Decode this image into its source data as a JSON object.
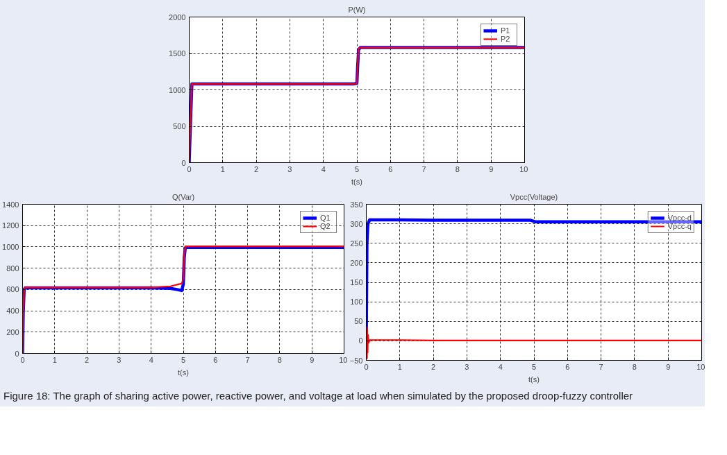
{
  "chart_data": [
    {
      "type": "line",
      "title": "P(W)",
      "xlabel": "t(s)",
      "xlim": [
        0,
        10
      ],
      "xticks": [
        0,
        1,
        2,
        3,
        4,
        5,
        6,
        7,
        8,
        9,
        10
      ],
      "ylim": [
        0,
        2000
      ],
      "yticks": [
        0,
        500,
        1000,
        1500,
        2000
      ],
      "grid": true,
      "legend": "top right",
      "series": [
        {
          "name": "P1",
          "color": "#0000ff",
          "x": [
            0,
            0.02,
            0.05,
            0.08,
            1,
            2,
            3,
            4,
            4.9,
            5.0,
            5.02,
            5.05,
            5.1,
            6,
            7,
            8,
            9,
            10
          ],
          "values": [
            0,
            300,
            700,
            1080,
            1080,
            1080,
            1080,
            1080,
            1080,
            1090,
            1300,
            1550,
            1580,
            1580,
            1580,
            1580,
            1580,
            1580
          ]
        },
        {
          "name": "P2",
          "color": "#ff0000",
          "x": [
            0,
            0.02,
            0.05,
            0.08,
            1,
            2,
            3,
            4,
            4.9,
            5.0,
            5.02,
            5.05,
            5.1,
            6,
            7,
            8,
            9,
            10
          ],
          "values": [
            0,
            320,
            700,
            1080,
            1080,
            1080,
            1080,
            1080,
            1080,
            1090,
            1320,
            1560,
            1580,
            1580,
            1580,
            1580,
            1580,
            1580
          ]
        }
      ]
    },
    {
      "type": "line",
      "title": "Q(Var)",
      "xlabel": "t(s)",
      "xlim": [
        0,
        10
      ],
      "xticks": [
        0,
        1,
        2,
        3,
        4,
        5,
        6,
        7,
        8,
        9,
        10
      ],
      "ylim": [
        0,
        1400
      ],
      "yticks": [
        0,
        200,
        400,
        600,
        800,
        1000,
        1200,
        1400
      ],
      "grid": true,
      "legend": "top right",
      "series": [
        {
          "name": "Q1",
          "color": "#0000ff",
          "x": [
            0,
            0.02,
            0.05,
            0.08,
            1,
            2,
            3,
            4,
            4.6,
            4.8,
            4.95,
            5.0,
            5.03,
            5.06,
            5.1,
            6,
            7,
            8,
            9,
            10
          ],
          "values": [
            0,
            380,
            600,
            615,
            615,
            615,
            615,
            615,
            610,
            600,
            590,
            650,
            900,
            990,
            995,
            995,
            995,
            995,
            995,
            995
          ]
        },
        {
          "name": "Q2",
          "color": "#ff0000",
          "x": [
            0,
            0.02,
            0.05,
            0.08,
            1,
            2,
            3,
            4,
            4.6,
            4.8,
            4.95,
            5.0,
            5.03,
            5.06,
            5.1,
            6,
            7,
            8,
            9,
            10
          ],
          "values": [
            0,
            380,
            600,
            620,
            620,
            620,
            620,
            620,
            630,
            645,
            655,
            700,
            920,
            1005,
            1005,
            1005,
            1005,
            1005,
            1005,
            1005
          ]
        }
      ]
    },
    {
      "type": "line",
      "title": "Vpcc(Voltage)",
      "xlabel": "t(s)",
      "xlim": [
        0,
        10
      ],
      "xticks": [
        0,
        1,
        2,
        3,
        4,
        5,
        6,
        7,
        8,
        9,
        10
      ],
      "ylim": [
        -50,
        350
      ],
      "yticks": [
        -50,
        0,
        50,
        100,
        150,
        200,
        250,
        300,
        350
      ],
      "grid": true,
      "legend": "top right",
      "annotations": [
        "Figure 18: The graph of sharing active power, reactive power, and voltage at load when simulated by the proposed droop-fuzzy controller"
      ],
      "series": [
        {
          "name": "Vpcc-d",
          "color": "#0000ff",
          "x": [
            0,
            0.02,
            0.05,
            0.1,
            1,
            2,
            3,
            4,
            4.9,
            5.05,
            6,
            7,
            8,
            9,
            10
          ],
          "values": [
            0,
            250,
            300,
            310,
            310,
            309,
            309,
            309,
            309,
            305,
            305,
            305,
            305,
            305,
            305
          ]
        },
        {
          "name": "Vpcc-q",
          "color": "#ff0000",
          "x": [
            0,
            0.01,
            0.02,
            0.03,
            0.04,
            0.05,
            0.07,
            0.1,
            1,
            2,
            3,
            4,
            5,
            6,
            7,
            8,
            9,
            10
          ],
          "values": [
            0,
            35,
            -45,
            30,
            -30,
            15,
            -5,
            2,
            2,
            1,
            1,
            1,
            1,
            1,
            1,
            1,
            1,
            1
          ]
        }
      ]
    }
  ]
}
